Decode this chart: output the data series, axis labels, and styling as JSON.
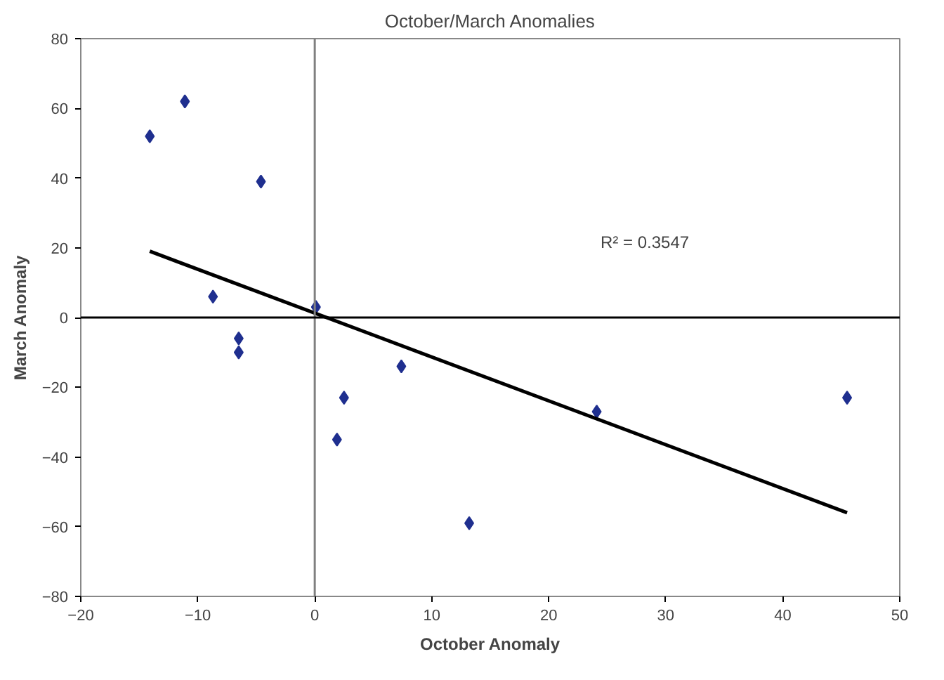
{
  "chart_data": {
    "type": "scatter",
    "title": "October/March Anomalies",
    "xlabel": "October Anomaly",
    "ylabel": "March Anomaly",
    "xlim": [
      -20,
      50
    ],
    "xticks": [
      -20,
      -10,
      0,
      10,
      20,
      30,
      40,
      50
    ],
    "ylim": [
      -80,
      80
    ],
    "yticks": [
      -80,
      -60,
      -40,
      -20,
      0,
      20,
      40,
      60,
      80
    ],
    "grid": false,
    "marker": "diamond",
    "annotations": [
      "R² = 0.3547"
    ],
    "ref_lines": [
      {
        "axis": "x",
        "value": 0,
        "color": "#808080"
      },
      {
        "axis": "y",
        "value": 0,
        "color": "#000000"
      }
    ],
    "series": [
      {
        "color": "#1f2f8f",
        "x": [
          -14.1,
          -11.1,
          -8.7,
          -6.5,
          -6.5,
          -4.6,
          0.1,
          1.9,
          2.5,
          7.4,
          13.2,
          24.1,
          45.5
        ],
        "values": [
          52,
          62,
          6,
          -6,
          -10,
          39,
          3,
          -35,
          -23,
          -14,
          -59,
          -27,
          -23
        ]
      },
      {
        "type": "line",
        "marker": "none",
        "color": "#000000",
        "x": [
          -14.1,
          45.5
        ],
        "values": [
          19,
          -56
        ]
      }
    ]
  }
}
